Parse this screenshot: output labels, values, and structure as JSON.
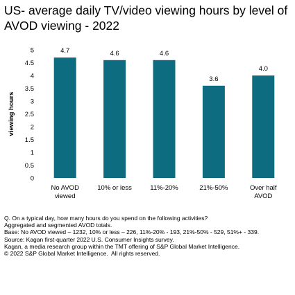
{
  "chart_data": {
    "type": "bar",
    "title": "US- average daily TV/video viewing hours by level of AVOD viewing - 2022",
    "xlabel": "",
    "ylabel": "viewing hours",
    "categories": [
      "No AVOD viewed",
      "10% or less",
      "11%-20%",
      "21%-50%",
      "Over half AVOD"
    ],
    "category_lines": [
      [
        "No AVOD",
        "viewed"
      ],
      [
        "10% or less"
      ],
      [
        "11%-20%"
      ],
      [
        "21%-50%"
      ],
      [
        "Over half",
        "AVOD"
      ]
    ],
    "values": [
      4.7,
      4.6,
      4.6,
      3.6,
      4.0
    ],
    "value_labels": [
      "4.7",
      "4.6",
      "4.6",
      "3.6",
      "4.0"
    ],
    "yticks": [
      "0",
      "0.5",
      "1",
      "1.5",
      "2",
      "2.5",
      "3",
      "3.5",
      "4",
      "4.5",
      "5"
    ],
    "ylim": [
      0,
      5
    ],
    "grid": false,
    "bar_color": "#0e6c80"
  },
  "notes": [
    "Q. On a typical day, how many hours do you spend on the following activities?",
    "Aggregated and segmented AVOD totals.",
    "Base: No AVOD viewed – 1232, 10% or less – 226, 11%-20% - 193, 21%-50% - 529, 51%+ - 339.",
    "Source: Kagan first-quarter 2022 U.S. Consumer Insights survey.",
    "Kagan, a media research group within the TMT offering of S&P Global Market Intelligence.",
    "© 2022 S&P Global Market Intelligence.  All rights reserved."
  ]
}
